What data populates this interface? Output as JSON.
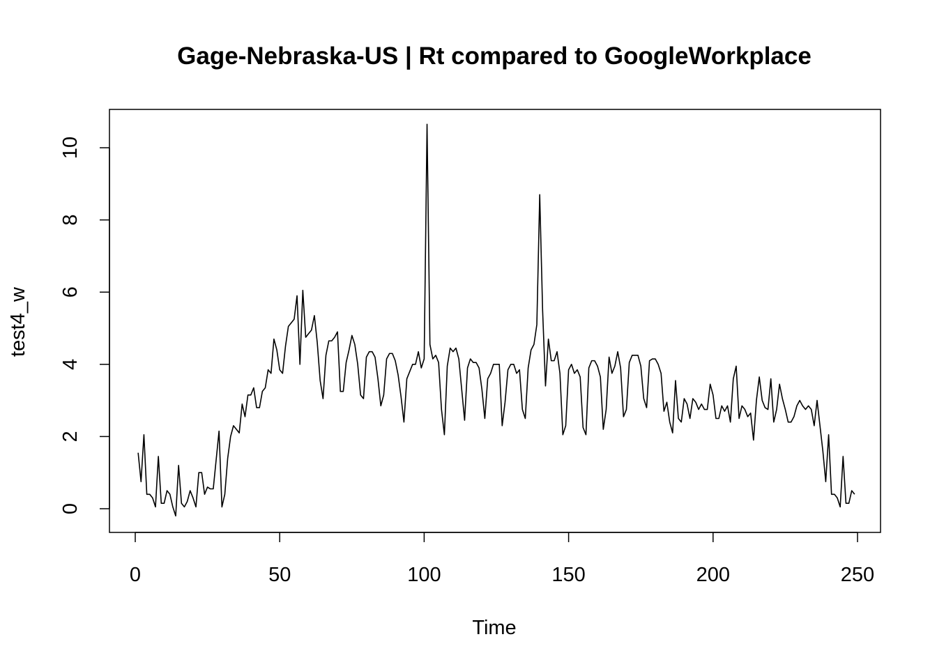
{
  "chart_data": {
    "type": "line",
    "title": "Gage-Nebraska-US | Rt compared to GoogleWorkplace",
    "xlabel": "Time",
    "ylabel": "test4_w",
    "xlim": [
      0,
      250
    ],
    "ylim": [
      -0.6,
      11.1
    ],
    "x_ticks": [
      0,
      50,
      100,
      150,
      200,
      250
    ],
    "y_ticks": [
      0,
      2,
      4,
      6,
      8,
      10
    ],
    "grid": false,
    "legend": "none",
    "series": [
      {
        "color": "#000000",
        "x_start": 1,
        "x_step": 1,
        "values": [
          1.55,
          0.75,
          2.05,
          0.4,
          0.4,
          0.3,
          0.05,
          1.45,
          0.15,
          0.15,
          0.5,
          0.4,
          0.05,
          -0.2,
          1.2,
          0.15,
          0.05,
          0.2,
          0.5,
          0.3,
          0.05,
          1.0,
          1.0,
          0.4,
          0.6,
          0.55,
          0.55,
          1.35,
          2.15,
          0.05,
          0.4,
          1.4,
          2.0,
          2.3,
          2.2,
          2.1,
          2.9,
          2.55,
          3.15,
          3.15,
          3.35,
          2.8,
          2.8,
          3.25,
          3.35,
          3.85,
          3.75,
          4.7,
          4.4,
          3.85,
          3.75,
          4.5,
          5.05,
          5.15,
          5.25,
          5.9,
          4.0,
          6.05,
          4.75,
          4.85,
          4.95,
          5.35,
          4.6,
          3.55,
          3.05,
          4.25,
          4.65,
          4.65,
          4.75,
          4.9,
          3.25,
          3.25,
          4.05,
          4.4,
          4.8,
          4.55,
          4.0,
          3.15,
          3.05,
          4.2,
          4.35,
          4.35,
          4.2,
          3.6,
          2.85,
          3.15,
          4.15,
          4.3,
          4.3,
          4.1,
          3.7,
          3.1,
          2.4,
          3.6,
          3.8,
          4.0,
          4.0,
          4.35,
          3.9,
          4.15,
          10.65,
          4.55,
          4.15,
          4.25,
          4.05,
          2.75,
          2.05,
          3.95,
          4.45,
          4.35,
          4.45,
          4.15,
          3.3,
          2.45,
          3.9,
          4.15,
          4.05,
          4.05,
          3.9,
          3.3,
          2.5,
          3.6,
          3.75,
          4.0,
          4.0,
          4.0,
          2.3,
          2.95,
          3.85,
          4.0,
          4.0,
          3.75,
          3.85,
          2.75,
          2.5,
          3.9,
          4.4,
          4.55,
          5.1,
          8.7,
          5.5,
          3.4,
          4.7,
          4.1,
          4.1,
          4.35,
          3.75,
          2.05,
          2.3,
          3.85,
          4.0,
          3.75,
          3.85,
          3.65,
          2.25,
          2.05,
          3.9,
          4.1,
          4.1,
          3.95,
          3.65,
          2.2,
          2.75,
          4.2,
          3.75,
          3.95,
          4.35,
          3.9,
          2.55,
          2.75,
          4.05,
          4.25,
          4.25,
          4.25,
          3.95,
          3.05,
          2.8,
          4.1,
          4.15,
          4.15,
          4.0,
          3.75,
          2.7,
          2.95,
          2.4,
          2.1,
          3.55,
          2.5,
          2.4,
          3.05,
          2.9,
          2.5,
          3.05,
          2.95,
          2.75,
          2.9,
          2.75,
          2.75,
          3.45,
          3.15,
          2.5,
          2.5,
          2.85,
          2.7,
          2.85,
          2.4,
          3.6,
          3.95,
          2.5,
          2.85,
          2.75,
          2.55,
          2.65,
          1.9,
          3.0,
          3.65,
          3.0,
          2.8,
          2.75,
          3.6,
          2.4,
          2.75,
          3.45,
          3.05,
          2.75,
          2.4,
          2.4,
          2.55,
          2.85,
          3.0,
          2.85,
          2.75,
          2.85,
          2.75,
          2.3,
          3.0,
          2.3,
          1.6,
          0.75,
          2.05,
          0.4,
          0.4,
          0.3,
          0.05,
          1.45,
          0.15,
          0.15,
          0.5,
          0.4
        ]
      }
    ]
  }
}
